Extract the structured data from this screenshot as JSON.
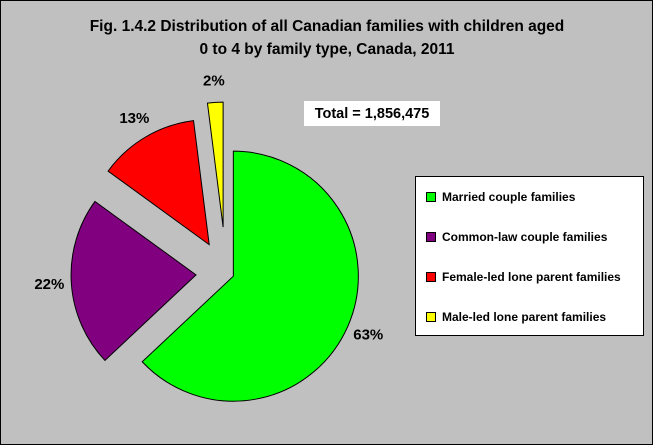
{
  "chart_data": {
    "type": "pie",
    "title_line1": "Fig. 1.4.2 Distribution of all Canadian families with children aged",
    "title_line2": "0 to 4 by family type, Canada, 2011",
    "annotation": "Total = 1,856,475",
    "legend_position": "right",
    "slices": [
      {
        "name": "Married couple families",
        "value": 63,
        "label": "63%",
        "color": "#00ff00"
      },
      {
        "name": "Common-law couple families",
        "value": 22,
        "label": "22%",
        "color": "#800080"
      },
      {
        "name": "Female-led lone parent families",
        "value": 13,
        "label": "13%",
        "color": "#ff0000"
      },
      {
        "name": "Male-led lone parent families",
        "value": 2,
        "label": "2%",
        "color": "#ffff00"
      }
    ]
  }
}
